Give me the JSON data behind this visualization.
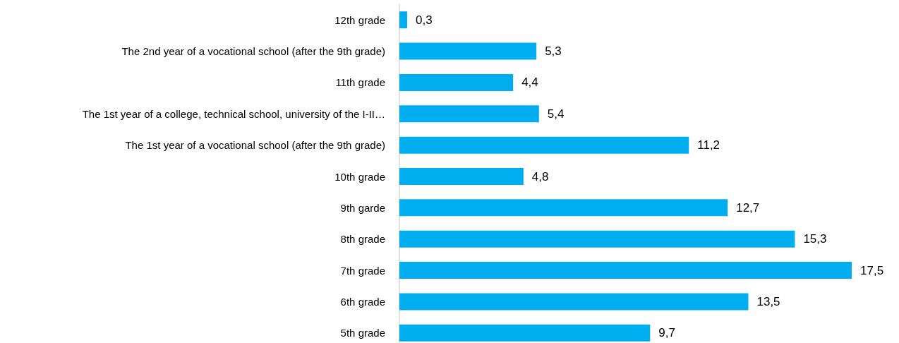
{
  "chart_data": {
    "type": "bar",
    "orientation": "horizontal",
    "tick_labels": "y",
    "categories": [
      "12th grade",
      "The 2nd year of a vocational school (after the 9th grade)",
      "11th grade",
      "The 1st year of a college, technical school, university of the I-II…",
      "The 1st year of a vocational school (after the 9th grade)",
      "10th grade",
      "9th garde",
      "8th grade",
      "7th grade",
      "6th grade",
      "5th grade"
    ],
    "values": [
      0.3,
      5.3,
      4.4,
      5.4,
      11.2,
      4.8,
      12.7,
      15.3,
      17.5,
      13.5,
      9.7
    ],
    "value_labels": [
      "0,3",
      "5,3",
      "4,4",
      "5,4",
      "11,2",
      "4,8",
      "12,7",
      "15,3",
      "17,5",
      "13,5",
      "9,7"
    ],
    "color": "#00adee"
  }
}
